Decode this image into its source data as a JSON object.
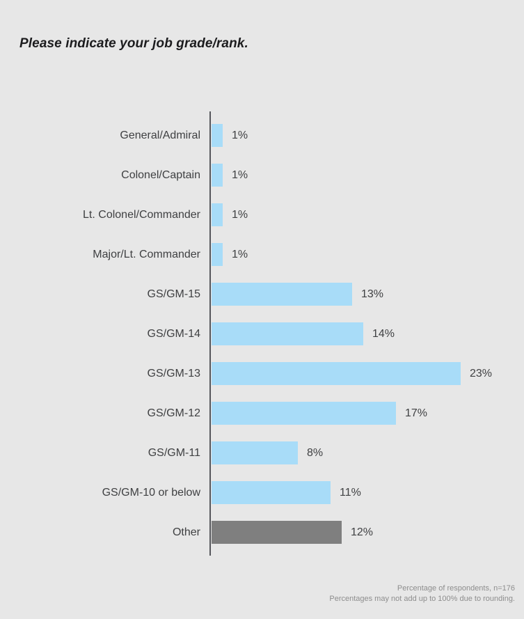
{
  "page": {
    "background": "#e7e7e7"
  },
  "title": "Please indicate your job grade/rank.",
  "chart_data": {
    "type": "bar",
    "orientation": "horizontal",
    "title": "Please indicate your job grade/rank.",
    "xlabel": "",
    "ylabel": "",
    "xlim": [
      0,
      25
    ],
    "grid": false,
    "legend": false,
    "categories": [
      "General/Admiral",
      "Colonel/Captain",
      "Lt. Colonel/Commander",
      "Major/Lt. Commander",
      "GS/GM-15",
      "GS/GM-14",
      "GS/GM-13",
      "GS/GM-12",
      "GS/GM-11",
      "GS/GM-10 or below",
      "Other"
    ],
    "values": [
      1,
      1,
      1,
      1,
      13,
      14,
      23,
      17,
      8,
      11,
      12
    ],
    "value_labels": [
      "1%",
      "1%",
      "1%",
      "1%",
      "13%",
      "14%",
      "23%",
      "17%",
      "8%",
      "11%",
      "12%"
    ],
    "bar_color_keys": [
      "blue",
      "blue",
      "blue",
      "blue",
      "blue",
      "blue",
      "blue",
      "blue",
      "blue",
      "blue",
      "gray"
    ],
    "colors": {
      "blue": "#a8dcf8",
      "gray": "#7f7f7f",
      "axis": "#55565b",
      "label_text": "#3f4042",
      "title_text": "#1c1c1e",
      "footnote_text": "#8d8d8d"
    },
    "units": "percent"
  },
  "footnote": {
    "line1": "Percentage of respondents, n=176",
    "line2": "Percentages may not add up to 100% due to rounding."
  }
}
